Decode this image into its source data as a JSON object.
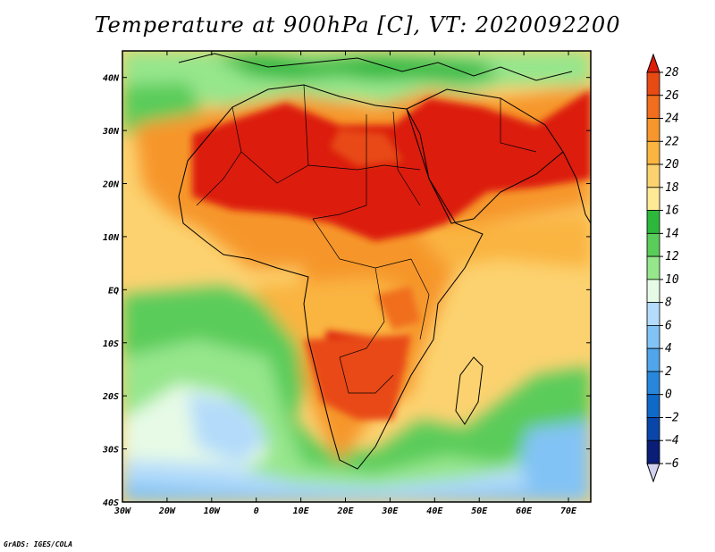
{
  "title": "Temperature at 900hPa [C], VT: 2020092200",
  "credit": "GrADS: IGES/COLA",
  "map": {
    "lon_range": [
      -30,
      75
    ],
    "lat_range": [
      -40,
      45
    ],
    "lon_ticks": [
      {
        "value": -30,
        "label": "30W"
      },
      {
        "value": -20,
        "label": "20W"
      },
      {
        "value": -10,
        "label": "10W"
      },
      {
        "value": 0,
        "label": "0"
      },
      {
        "value": 10,
        "label": "10E"
      },
      {
        "value": 20,
        "label": "20E"
      },
      {
        "value": 30,
        "label": "30E"
      },
      {
        "value": 40,
        "label": "40E"
      },
      {
        "value": 50,
        "label": "50E"
      },
      {
        "value": 60,
        "label": "60E"
      },
      {
        "value": 70,
        "label": "70E"
      }
    ],
    "lat_ticks": [
      {
        "value": 40,
        "label": "40N"
      },
      {
        "value": 30,
        "label": "30N"
      },
      {
        "value": 20,
        "label": "20N"
      },
      {
        "value": 10,
        "label": "10N"
      },
      {
        "value": 0,
        "label": "EQ"
      },
      {
        "value": -10,
        "label": "10S"
      },
      {
        "value": -20,
        "label": "20S"
      },
      {
        "value": -30,
        "label": "30S"
      },
      {
        "value": -40,
        "label": "40S"
      }
    ]
  },
  "colorbar": {
    "levels": [
      28,
      26,
      24,
      22,
      20,
      18,
      16,
      14,
      12,
      10,
      8,
      6,
      4,
      2,
      0,
      -2,
      -4,
      -6
    ],
    "colors": [
      "#dc1e0a",
      "#e84a14",
      "#f06e1e",
      "#f6962c",
      "#fab440",
      "#fcd270",
      "#fde996",
      "#2db83c",
      "#5acc5a",
      "#96e68c",
      "#e6fae6",
      "#b4dcfa",
      "#82c3f5",
      "#50a5eb",
      "#2887dc",
      "#0f69c8",
      "#0a46aa",
      "#0a1e78",
      "#d2d2f0"
    ]
  }
}
